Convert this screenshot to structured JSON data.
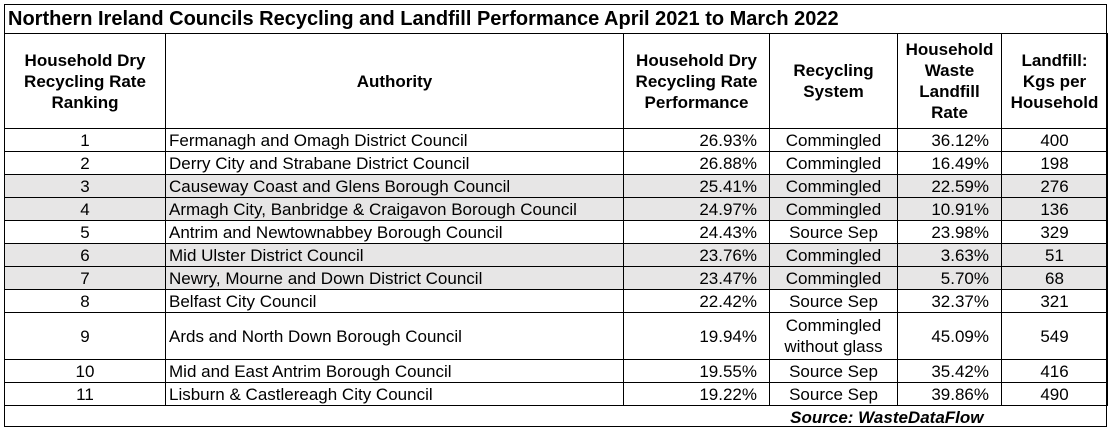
{
  "title": "Northern Ireland Councils Recycling and Landfill Performance April 2021 to March 2022",
  "headers": {
    "ranking": "Household Dry Recycling Rate Ranking",
    "authority": "Authority",
    "performance": "Household Dry Recycling Rate Performance",
    "system": "Recycling System",
    "landfill_rate": "Household Waste Landfill Rate",
    "landfill_kgs": "Landfill: Kgs per Household"
  },
  "rows": [
    {
      "rank": "1",
      "authority": "Fermanagh and Omagh District Council",
      "performance": "26.93%",
      "system": "Commingled",
      "landfill_rate": "36.12%",
      "kgs": "400"
    },
    {
      "rank": "2",
      "authority": "Derry City and Strabane District Council",
      "performance": "26.88%",
      "system": "Commingled",
      "landfill_rate": "16.49%",
      "kgs": "198"
    },
    {
      "rank": "3",
      "authority": "Causeway Coast and Glens Borough Council",
      "performance": "25.41%",
      "system": "Commingled",
      "landfill_rate": "22.59%",
      "kgs": "276"
    },
    {
      "rank": "4",
      "authority": "Armagh City, Banbridge & Craigavon Borough Council",
      "performance": "24.97%",
      "system": "Commingled",
      "landfill_rate": "10.91%",
      "kgs": "136"
    },
    {
      "rank": "5",
      "authority": "Antrim and Newtownabbey Borough Council",
      "performance": "24.43%",
      "system": "Source Sep",
      "landfill_rate": "23.98%",
      "kgs": "329"
    },
    {
      "rank": "6",
      "authority": "Mid Ulster District Council",
      "performance": "23.76%",
      "system": "Commingled",
      "landfill_rate": "3.63%",
      "kgs": "51"
    },
    {
      "rank": "7",
      "authority": "Newry, Mourne and Down District Council",
      "performance": "23.47%",
      "system": "Commingled",
      "landfill_rate": "5.70%",
      "kgs": "68"
    },
    {
      "rank": "8",
      "authority": "Belfast City Council",
      "performance": "22.42%",
      "system": "Source Sep",
      "landfill_rate": "32.37%",
      "kgs": "321"
    },
    {
      "rank": "9",
      "authority": "Ards and North Down Borough Council",
      "performance": "19.94%",
      "system": "Commingled without glass",
      "landfill_rate": "45.09%",
      "kgs": "549"
    },
    {
      "rank": "10",
      "authority": "Mid and East Antrim Borough Council",
      "performance": "19.55%",
      "system": "Source Sep",
      "landfill_rate": "35.42%",
      "kgs": "416"
    },
    {
      "rank": "11",
      "authority": "Lisburn & Castlereagh City Council",
      "performance": "19.22%",
      "system": "Source Sep",
      "landfill_rate": "39.86%",
      "kgs": "490"
    }
  ],
  "source": "Source: WasteDataFlow",
  "colors": {
    "shade": "#e7e6e6",
    "border": "#000000"
  }
}
